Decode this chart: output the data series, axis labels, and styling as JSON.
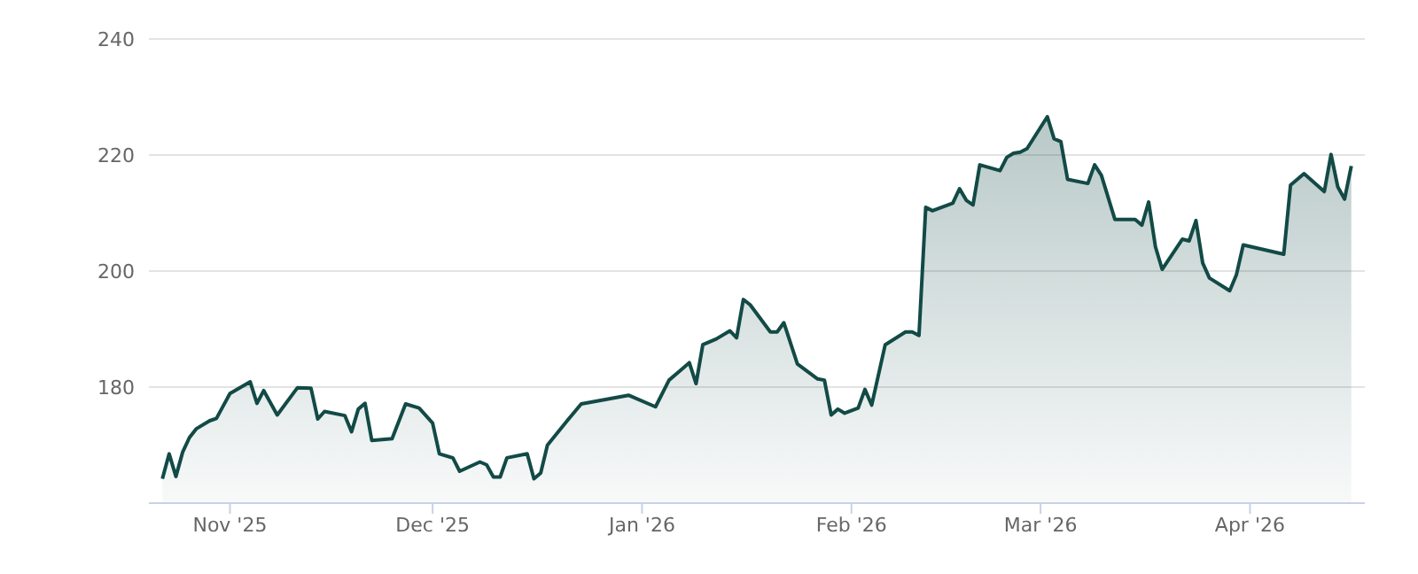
{
  "chart_data": {
    "type": "area",
    "x": [
      "2025-10-22",
      "2025-10-23",
      "2025-10-24",
      "2025-10-25",
      "2025-10-26",
      "2025-10-27",
      "2025-10-29",
      "2025-10-30",
      "2025-11-01",
      "2025-11-04",
      "2025-11-05",
      "2025-11-06",
      "2025-11-08",
      "2025-11-11",
      "2025-11-13",
      "2025-11-14",
      "2025-11-15",
      "2025-11-18",
      "2025-11-19",
      "2025-11-20",
      "2025-11-21",
      "2025-11-22",
      "2025-11-25",
      "2025-11-27",
      "2025-11-29",
      "2025-12-01",
      "2025-12-02",
      "2025-12-04",
      "2025-12-05",
      "2025-12-08",
      "2025-12-09",
      "2025-12-10",
      "2025-12-11",
      "2025-12-12",
      "2025-12-15",
      "2025-12-16",
      "2025-12-17",
      "2025-12-18",
      "2025-12-21",
      "2025-12-23",
      "2025-12-30",
      "2026-01-03",
      "2026-01-05",
      "2026-01-08",
      "2026-01-09",
      "2026-01-10",
      "2026-01-12",
      "2026-01-14",
      "2026-01-15",
      "2026-01-16",
      "2026-01-17",
      "2026-01-20",
      "2026-01-21",
      "2026-01-22",
      "2026-01-24",
      "2026-01-27",
      "2026-01-28",
      "2026-01-29",
      "2026-01-30",
      "2026-01-31",
      "2026-02-02",
      "2026-02-03",
      "2026-02-04",
      "2026-02-06",
      "2026-02-09",
      "2026-02-10",
      "2026-02-11",
      "2026-02-12",
      "2026-02-13",
      "2026-02-16",
      "2026-02-17",
      "2026-02-18",
      "2026-02-19",
      "2026-02-20",
      "2026-02-23",
      "2026-02-24",
      "2026-02-25",
      "2026-02-26",
      "2026-02-27",
      "2026-03-02",
      "2026-03-03",
      "2026-03-04",
      "2026-03-05",
      "2026-03-08",
      "2026-03-09",
      "2026-03-10",
      "2026-03-12",
      "2026-03-15",
      "2026-03-16",
      "2026-03-17",
      "2026-03-18",
      "2026-03-19",
      "2026-03-22",
      "2026-03-23",
      "2026-03-24",
      "2026-03-25",
      "2026-03-26",
      "2026-03-29",
      "2026-03-30",
      "2026-03-31",
      "2026-04-06",
      "2026-04-07",
      "2026-04-09",
      "2026-04-12",
      "2026-04-13",
      "2026-04-14",
      "2026-04-15",
      "2026-04-16"
    ],
    "series": [
      {
        "color": "#124a46",
        "values": [
          164.2,
          168.5,
          164.6,
          168.8,
          171.3,
          172.8,
          174.2,
          174.6,
          178.9,
          180.9,
          177.2,
          179.4,
          175.2,
          179.9,
          179.8,
          174.5,
          175.8,
          175.1,
          172.3,
          176.2,
          177.2,
          170.8,
          171.1,
          177.1,
          176.4,
          173.8,
          168.5,
          167.8,
          165.5,
          167.1,
          166.6,
          164.5,
          164.5,
          167.8,
          168.5,
          164.2,
          165.2,
          170.0,
          174.3,
          177.1,
          178.6,
          176.6,
          181.2,
          184.2,
          180.6,
          187.3,
          188.3,
          189.7,
          188.5,
          195.1,
          194.2,
          189.5,
          189.5,
          191.1,
          184.0,
          181.4,
          181.2,
          175.2,
          176.2,
          175.5,
          176.4,
          179.6,
          176.9,
          187.3,
          189.5,
          189.5,
          188.9,
          211.0,
          210.4,
          211.7,
          214.2,
          212.2,
          211.4,
          218.3,
          217.3,
          219.6,
          220.3,
          220.5,
          221.1,
          226.6,
          222.8,
          222.3,
          215.8,
          215.1,
          218.3,
          216.5,
          208.9,
          208.9,
          207.9,
          211.9,
          204.2,
          200.3,
          205.5,
          205.2,
          208.7,
          201.4,
          198.8,
          196.6,
          199.4,
          204.5,
          202.9,
          214.8,
          216.8,
          213.7,
          220.1,
          214.5,
          212.4,
          218.1
        ]
      }
    ],
    "xlim": [
      "2025-10-20",
      "2026-04-18"
    ],
    "xticks": [
      {
        "value": "2025-11-01",
        "label": "Nov '25"
      },
      {
        "value": "2025-12-01",
        "label": "Dec '25"
      },
      {
        "value": "2026-01-01",
        "label": "Jan '26"
      },
      {
        "value": "2026-02-01",
        "label": "Feb '26"
      },
      {
        "value": "2026-03-01",
        "label": "Mar '26"
      },
      {
        "value": "2026-04-01",
        "label": "Apr '26"
      }
    ],
    "ylim": [
      160,
      240
    ],
    "yticks": [
      180,
      200,
      220,
      240
    ],
    "grid": "y",
    "legend": false,
    "marker": "none",
    "line_style": "solid"
  }
}
